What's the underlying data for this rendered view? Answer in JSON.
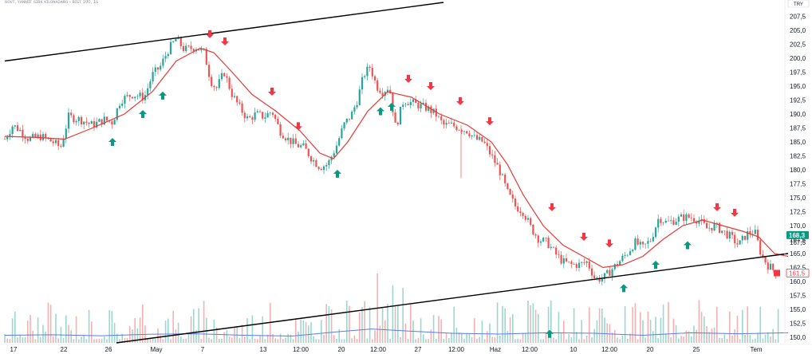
{
  "header": {
    "symbol_line": "ʜᴏᴠᴛ, ʏᴀɴᴍɪᴛ ɢɪʀᴋ ᴋɪʟᴏɴᴀᴅᴀʀɢ - ʙɪꜱᴛ 100, 1s",
    "scale_button": "TRY"
  },
  "chart_data": [
    {
      "type": "candlestick",
      "title": "",
      "xlabel": "",
      "ylabel": "",
      "ylim": [
        149.0,
        209.0
      ],
      "price_axis_ticks": [
        150.0,
        152.5,
        155.0,
        157.5,
        160.0,
        162.5,
        165.0,
        167.5,
        170.0,
        172.5,
        175.0,
        177.5,
        180.0,
        182.5,
        185.0,
        187.5,
        190.0,
        192.5,
        195.0,
        197.5,
        200.0,
        202.5,
        205.0,
        207.5
      ],
      "time_axis_labels": [
        "17",
        "22",
        "26",
        "May",
        "7",
        "13",
        "12:00",
        "20",
        "12:00",
        "27",
        "12:00",
        "Haz",
        "12:00",
        "10",
        "12:00",
        "20",
        "25",
        "Tem"
      ],
      "price_path": [
        {
          "t": 0,
          "p": 185.5
        },
        {
          "t": 10,
          "p": 188.0
        },
        {
          "t": 20,
          "p": 187.0
        },
        {
          "t": 30,
          "p": 185.5
        },
        {
          "t": 45,
          "p": 186.0
        },
        {
          "t": 60,
          "p": 185.0
        },
        {
          "t": 70,
          "p": 184.0
        },
        {
          "t": 80,
          "p": 189.5
        },
        {
          "t": 95,
          "p": 189.0
        },
        {
          "t": 110,
          "p": 188.0
        },
        {
          "t": 125,
          "p": 189.0
        },
        {
          "t": 135,
          "p": 188.5
        },
        {
          "t": 145,
          "p": 192.5
        },
        {
          "t": 160,
          "p": 193.5
        },
        {
          "t": 175,
          "p": 193.0
        },
        {
          "t": 185,
          "p": 197.0
        },
        {
          "t": 195,
          "p": 198.5
        },
        {
          "t": 205,
          "p": 201.5
        },
        {
          "t": 215,
          "p": 203.5
        },
        {
          "t": 225,
          "p": 201.5
        },
        {
          "t": 240,
          "p": 202.0
        },
        {
          "t": 250,
          "p": 201.0
        },
        {
          "t": 258,
          "p": 196.0
        },
        {
          "t": 265,
          "p": 194.5
        },
        {
          "t": 275,
          "p": 197.5
        },
        {
          "t": 285,
          "p": 193.5
        },
        {
          "t": 295,
          "p": 191.0
        },
        {
          "t": 305,
          "p": 189.0
        },
        {
          "t": 315,
          "p": 190.0
        },
        {
          "t": 325,
          "p": 189.5
        },
        {
          "t": 335,
          "p": 190.5
        },
        {
          "t": 345,
          "p": 187.0
        },
        {
          "t": 355,
          "p": 185.5
        },
        {
          "t": 365,
          "p": 184.5
        },
        {
          "t": 375,
          "p": 184.0
        },
        {
          "t": 385,
          "p": 182.0
        },
        {
          "t": 395,
          "p": 180.5
        },
        {
          "t": 405,
          "p": 181.0
        },
        {
          "t": 415,
          "p": 184.0
        },
        {
          "t": 425,
          "p": 188.0
        },
        {
          "t": 435,
          "p": 190.0
        },
        {
          "t": 442,
          "p": 192.5
        },
        {
          "t": 450,
          "p": 197.0
        },
        {
          "t": 458,
          "p": 198.5
        },
        {
          "t": 466,
          "p": 195.0
        },
        {
          "t": 474,
          "p": 194.0
        },
        {
          "t": 482,
          "p": 195.0
        },
        {
          "t": 490,
          "p": 187.5
        },
        {
          "t": 500,
          "p": 192.5
        },
        {
          "t": 510,
          "p": 192.0
        },
        {
          "t": 520,
          "p": 191.5
        },
        {
          "t": 530,
          "p": 191.0
        },
        {
          "t": 540,
          "p": 190.0
        },
        {
          "t": 550,
          "p": 188.0
        },
        {
          "t": 560,
          "p": 188.0
        },
        {
          "t": 570,
          "p": 187.5
        },
        {
          "t": 580,
          "p": 187.0
        },
        {
          "t": 590,
          "p": 185.5
        },
        {
          "t": 600,
          "p": 185.0
        },
        {
          "t": 610,
          "p": 182.5
        },
        {
          "t": 620,
          "p": 180.0
        },
        {
          "t": 630,
          "p": 176.0
        },
        {
          "t": 640,
          "p": 173.5
        },
        {
          "t": 650,
          "p": 172.5
        },
        {
          "t": 660,
          "p": 169.5
        },
        {
          "t": 670,
          "p": 167.5
        },
        {
          "t": 680,
          "p": 167.0
        },
        {
          "t": 690,
          "p": 165.0
        },
        {
          "t": 700,
          "p": 163.5
        },
        {
          "t": 710,
          "p": 163.0
        },
        {
          "t": 720,
          "p": 163.0
        },
        {
          "t": 730,
          "p": 163.5
        },
        {
          "t": 740,
          "p": 160.5
        },
        {
          "t": 750,
          "p": 160.5
        },
        {
          "t": 760,
          "p": 162.0
        },
        {
          "t": 770,
          "p": 163.5
        },
        {
          "t": 780,
          "p": 165.0
        },
        {
          "t": 790,
          "p": 167.0
        },
        {
          "t": 800,
          "p": 166.0
        },
        {
          "t": 810,
          "p": 167.5
        },
        {
          "t": 820,
          "p": 171.5
        },
        {
          "t": 830,
          "p": 170.5
        },
        {
          "t": 840,
          "p": 171.0
        },
        {
          "t": 850,
          "p": 171.5
        },
        {
          "t": 860,
          "p": 171.5
        },
        {
          "t": 870,
          "p": 171.0
        },
        {
          "t": 880,
          "p": 169.5
        },
        {
          "t": 890,
          "p": 170.0
        },
        {
          "t": 900,
          "p": 169.0
        },
        {
          "t": 910,
          "p": 168.0
        },
        {
          "t": 920,
          "p": 166.5
        },
        {
          "t": 930,
          "p": 168.5
        },
        {
          "t": 940,
          "p": 169.0
        },
        {
          "t": 948,
          "p": 165.0
        },
        {
          "t": 956,
          "p": 163.0
        },
        {
          "t": 964,
          "p": 162.0
        },
        {
          "t": 972,
          "p": 161.5
        }
      ],
      "moving_average": [
        {
          "t": 0,
          "p": 186.0
        },
        {
          "t": 40,
          "p": 185.8
        },
        {
          "t": 75,
          "p": 185.5
        },
        {
          "t": 110,
          "p": 187.5
        },
        {
          "t": 150,
          "p": 190.0
        },
        {
          "t": 185,
          "p": 194.0
        },
        {
          "t": 215,
          "p": 199.5
        },
        {
          "t": 245,
          "p": 201.8
        },
        {
          "t": 262,
          "p": 201.0
        },
        {
          "t": 285,
          "p": 197.5
        },
        {
          "t": 310,
          "p": 193.5
        },
        {
          "t": 340,
          "p": 190.5
        },
        {
          "t": 370,
          "p": 187.0
        },
        {
          "t": 395,
          "p": 183.0
        },
        {
          "t": 412,
          "p": 182.0
        },
        {
          "t": 430,
          "p": 185.0
        },
        {
          "t": 455,
          "p": 190.5
        },
        {
          "t": 480,
          "p": 194.0
        },
        {
          "t": 510,
          "p": 193.0
        },
        {
          "t": 545,
          "p": 190.0
        },
        {
          "t": 580,
          "p": 188.0
        },
        {
          "t": 610,
          "p": 185.0
        },
        {
          "t": 630,
          "p": 181.0
        },
        {
          "t": 650,
          "p": 175.5
        },
        {
          "t": 675,
          "p": 170.0
        },
        {
          "t": 700,
          "p": 166.5
        },
        {
          "t": 725,
          "p": 164.5
        },
        {
          "t": 750,
          "p": 162.5
        },
        {
          "t": 775,
          "p": 163.0
        },
        {
          "t": 800,
          "p": 164.5
        },
        {
          "t": 825,
          "p": 167.5
        },
        {
          "t": 850,
          "p": 170.0
        },
        {
          "t": 875,
          "p": 171.0
        },
        {
          "t": 900,
          "p": 170.0
        },
        {
          "t": 925,
          "p": 169.0
        },
        {
          "t": 945,
          "p": 168.0
        },
        {
          "t": 965,
          "p": 165.0
        },
        {
          "t": 982,
          "p": 164.5
        }
      ],
      "trend_lines": [
        {
          "from": {
            "t": 0,
            "p": 199.5
          },
          "to": {
            "t": 550,
            "p": 210.0
          }
        },
        {
          "from": {
            "t": 140,
            "p": 149.0
          },
          "to": {
            "t": 982,
            "p": 165.0
          }
        }
      ],
      "buy_signals": [
        {
          "t": 135,
          "p": 185.0
        },
        {
          "t": 173,
          "p": 190.0
        },
        {
          "t": 198,
          "p": 193.3
        },
        {
          "t": 417,
          "p": 179.3
        },
        {
          "t": 471,
          "p": 190.5
        },
        {
          "t": 485,
          "p": 191.3
        },
        {
          "t": 683,
          "p": 150.6
        },
        {
          "t": 776,
          "p": 158.8
        },
        {
          "t": 816,
          "p": 163.0
        },
        {
          "t": 856,
          "p": 166.5
        }
      ],
      "sell_signals": [
        {
          "t": 257,
          "p": 204.3
        },
        {
          "t": 276,
          "p": 203.0
        },
        {
          "t": 335,
          "p": 194.0
        },
        {
          "t": 368,
          "p": 187.8
        },
        {
          "t": 506,
          "p": 196.3
        },
        {
          "t": 534,
          "p": 195.0
        },
        {
          "t": 571,
          "p": 192.3
        },
        {
          "t": 608,
          "p": 188.7
        },
        {
          "t": 686,
          "p": 173.3
        },
        {
          "t": 726,
          "p": 168.0
        },
        {
          "t": 758,
          "p": 166.8
        },
        {
          "t": 893,
          "p": 173.3
        },
        {
          "t": 915,
          "p": 172.3
        }
      ],
      "volume_avg_line": [
        {
          "t": 0,
          "v": 0.3
        },
        {
          "t": 60,
          "v": 0.32
        },
        {
          "t": 120,
          "v": 0.28
        },
        {
          "t": 180,
          "v": 0.34
        },
        {
          "t": 240,
          "v": 0.36
        },
        {
          "t": 300,
          "v": 0.3
        },
        {
          "t": 360,
          "v": 0.27
        },
        {
          "t": 420,
          "v": 0.45
        },
        {
          "t": 460,
          "v": 0.55
        },
        {
          "t": 500,
          "v": 0.48
        },
        {
          "t": 560,
          "v": 0.38
        },
        {
          "t": 620,
          "v": 0.35
        },
        {
          "t": 680,
          "v": 0.4
        },
        {
          "t": 740,
          "v": 0.38
        },
        {
          "t": 800,
          "v": 0.3
        },
        {
          "t": 860,
          "v": 0.4
        },
        {
          "t": 920,
          "v": 0.36
        },
        {
          "t": 982,
          "v": 0.4
        }
      ],
      "last_price_label": "168,3",
      "secondary_price_label": "167,5",
      "current_price_label": "161,5",
      "current_price_tag": "161,5",
      "colors": {
        "up": "#26a69a",
        "down": "#ef5350",
        "ma_line": "#e53935",
        "volume_avg": "#5b7de8",
        "trend_line": "#000000",
        "buy_arrow": "#089981",
        "sell_arrow": "#f23645",
        "last_price_badge": "#089981",
        "current_price_badge": "#f23645"
      },
      "grid": false,
      "legend": "none"
    }
  ]
}
